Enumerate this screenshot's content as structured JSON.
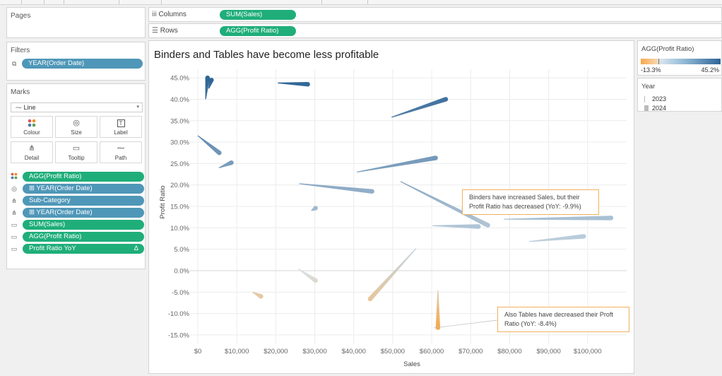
{
  "pages": {
    "title": "Pages"
  },
  "filters": {
    "title": "Filters",
    "pill": "YEAR(Order Date)"
  },
  "marks": {
    "title": "Marks",
    "mark_type": "Line",
    "buttons": [
      {
        "label": "Colour",
        "icon": "colour-icon"
      },
      {
        "label": "Size",
        "icon": "size-icon"
      },
      {
        "label": "Label",
        "icon": "label-icon"
      },
      {
        "label": "Detail",
        "icon": "detail-icon"
      },
      {
        "label": "Tooltip",
        "icon": "tooltip-icon"
      },
      {
        "label": "Path",
        "icon": "path-icon"
      }
    ],
    "pills": [
      {
        "label": "AGG(Profit Ratio)",
        "color": "green",
        "icon": "colour-icon"
      },
      {
        "label": "⊞ YEAR(Order Date)",
        "color": "blue",
        "icon": "size-icon"
      },
      {
        "label": "Sub-Category",
        "color": "blue",
        "icon": "detail-icon"
      },
      {
        "label": "⊞ YEAR(Order Date)",
        "color": "blue",
        "icon": "detail-icon"
      },
      {
        "label": "SUM(Sales)",
        "color": "green",
        "icon": "tooltip-icon"
      },
      {
        "label": "AGG(Profit Ratio)",
        "color": "green",
        "icon": "tooltip-icon"
      },
      {
        "label": "Profit Ratio YoY",
        "color": "green",
        "icon": "tooltip-icon",
        "suffix": "Δ"
      }
    ]
  },
  "shelves": {
    "columns_label": "Columns",
    "columns_pill": "SUM(Sales)",
    "rows_label": "Rows",
    "rows_pill": "AGG(Profit Ratio)"
  },
  "legend": {
    "color_title": "AGG(Profit Ratio)",
    "color_min": "-13.3%",
    "color_max": "45.2%",
    "size_title": "Year",
    "size_items": [
      "2023",
      "2024"
    ]
  },
  "colors": {
    "pill_green": "#1fae7a",
    "pill_blue": "#4f97b8",
    "low": "#f6a94e",
    "high": "#2e6496"
  },
  "annotations": [
    {
      "text": "Binders have increased Sales, but their Profit Ratio has decreased (YoY: -9.9%)"
    },
    {
      "text": "Also Tables have decreased their Proft Ratio (YoY: -8.4%)"
    }
  ],
  "chart_data": {
    "type": "line",
    "title": "Binders and Tables have become less profitable",
    "xlabel": "Sales",
    "ylabel": "Profit Ratio",
    "xlim": [
      -2000,
      110000
    ],
    "ylim": [
      -17,
      47
    ],
    "x_ticks": [
      "$0",
      "$10,000",
      "$20,000",
      "$30,000",
      "$40,000",
      "$50,000",
      "$60,000",
      "$70,000",
      "$80,000",
      "$90,000",
      "$100,000"
    ],
    "y_ticks": [
      "45.0%",
      "40.0%",
      "35.0%",
      "30.0%",
      "25.0%",
      "20.0%",
      "15.0%",
      "10.0%",
      "5.0%",
      "0.0%",
      "-5.0%",
      "-10.0%",
      "-15.0%"
    ],
    "grid": true,
    "series": [
      {
        "x": [
          2000,
          2500
        ],
        "y": [
          40,
          45
        ]
      },
      {
        "x": [
          2800,
          3500
        ],
        "y": [
          42.5,
          44.5
        ]
      },
      {
        "x": [
          20500,
          28200
        ],
        "y": [
          43.8,
          43.5
        ]
      },
      {
        "x": [
          49700,
          63600
        ],
        "y": [
          35.8,
          40
        ]
      },
      {
        "x": [
          0,
          5500
        ],
        "y": [
          31.5,
          27.5
        ]
      },
      {
        "x": [
          5400,
          8600
        ],
        "y": [
          24,
          25.2
        ]
      },
      {
        "x": [
          40800,
          61000
        ],
        "y": [
          23,
          26.3
        ]
      },
      {
        "x": [
          26000,
          44700
        ],
        "y": [
          20.3,
          18.5
        ]
      },
      {
        "x": [
          29100,
          30200
        ],
        "y": [
          14,
          14.6
        ]
      },
      {
        "x": [
          52000,
          74400
        ],
        "y": [
          20.8,
          10.6
        ]
      },
      {
        "x": [
          60200,
          72000
        ],
        "y": [
          10.5,
          10.3
        ]
      },
      {
        "x": [
          78500,
          106000
        ],
        "y": [
          12,
          12.3
        ]
      },
      {
        "x": [
          85000,
          99000
        ],
        "y": [
          6.8,
          8
        ]
      },
      {
        "x": [
          56000,
          44200
        ],
        "y": [
          5.2,
          -6.6
        ]
      },
      {
        "x": [
          25800,
          30200
        ],
        "y": [
          0.4,
          -2.3
        ]
      },
      {
        "x": [
          14000,
          16200
        ],
        "y": [
          -5,
          -6
        ]
      },
      {
        "x": [
          61600,
          61600
        ],
        "y": [
          -4.6,
          -13.3
        ]
      }
    ]
  }
}
